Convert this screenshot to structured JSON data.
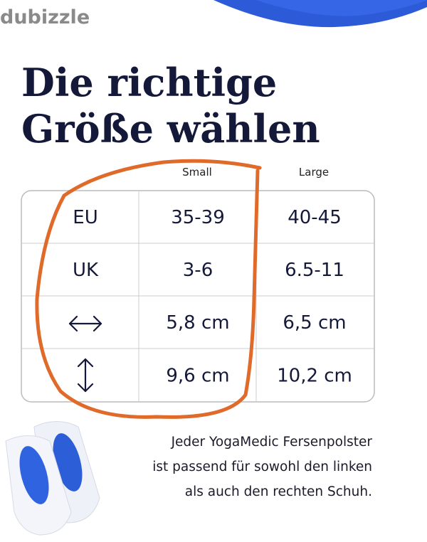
{
  "watermark": "dubizzle",
  "title": {
    "line1": "Die richtige",
    "line2": "Größe wählen"
  },
  "table": {
    "headers": {
      "small": "Small",
      "large": "Large"
    },
    "rows": [
      {
        "label": "EU",
        "small": "35-39",
        "large": "40-45"
      },
      {
        "label": "UK",
        "small": "3-6",
        "large": "6.5-11"
      },
      {
        "small": "5,8 cm",
        "large": "6,5 cm"
      },
      {
        "small": "9,6 cm",
        "large": "10,2 cm"
      }
    ]
  },
  "footer": {
    "line1": "Jeder YogaMedic Fersenpolster",
    "line2": "ist passend für sowohl den linken",
    "line3": "als auch den rechten Schuh."
  }
}
